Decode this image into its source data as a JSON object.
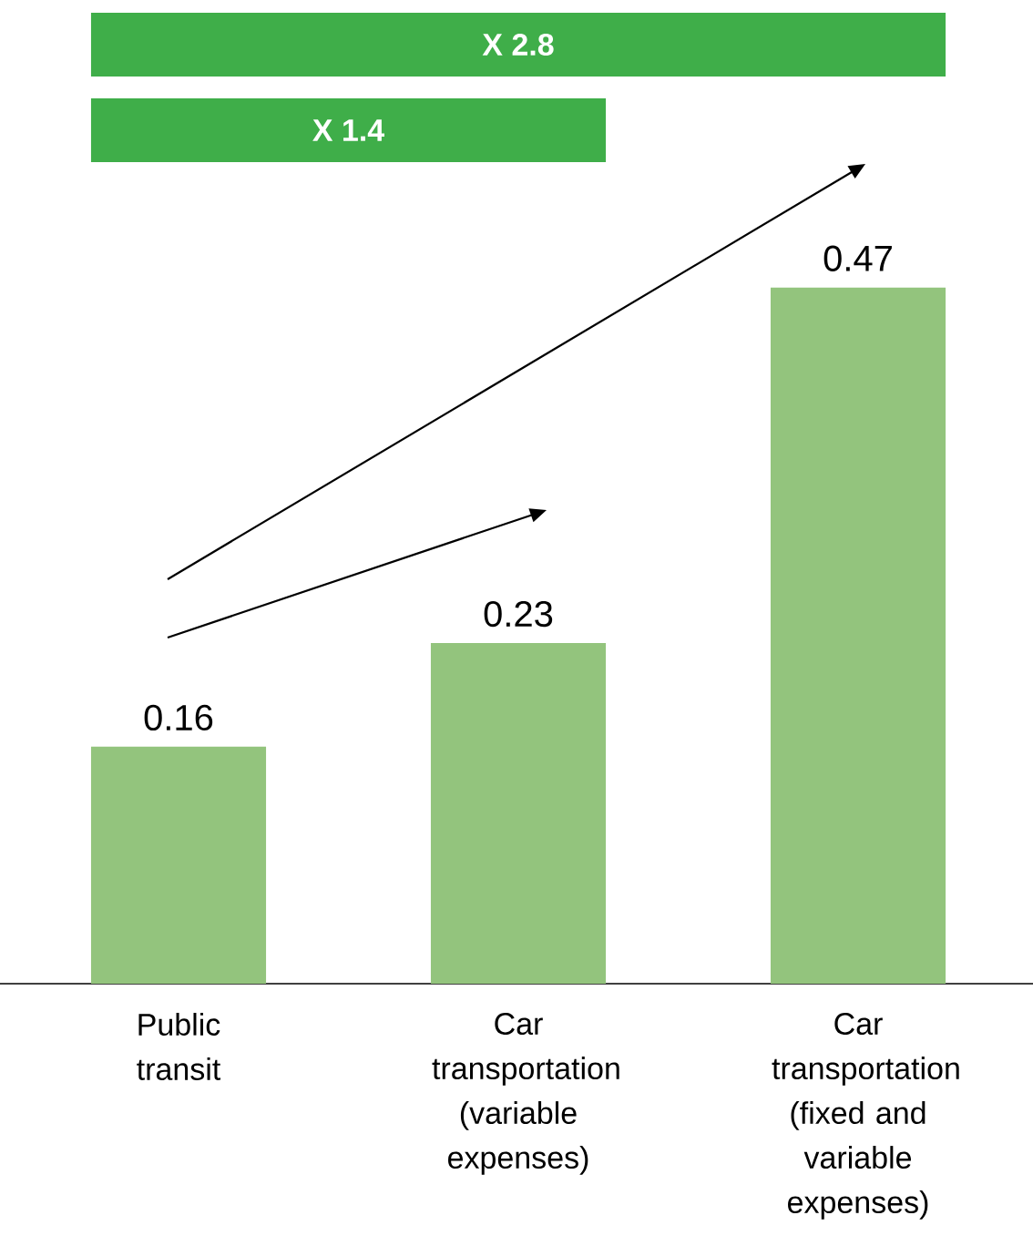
{
  "chart_data": {
    "type": "bar",
    "categories": [
      "Public transit",
      "Car transportation (variable expenses)",
      "Car transportation (fixed and variable expenses)"
    ],
    "values": [
      0.16,
      0.23,
      0.47
    ],
    "color": "#93c47d",
    "data_labels": true,
    "annotations": [
      "X 2.8",
      "X 1.4"
    ]
  }
}
